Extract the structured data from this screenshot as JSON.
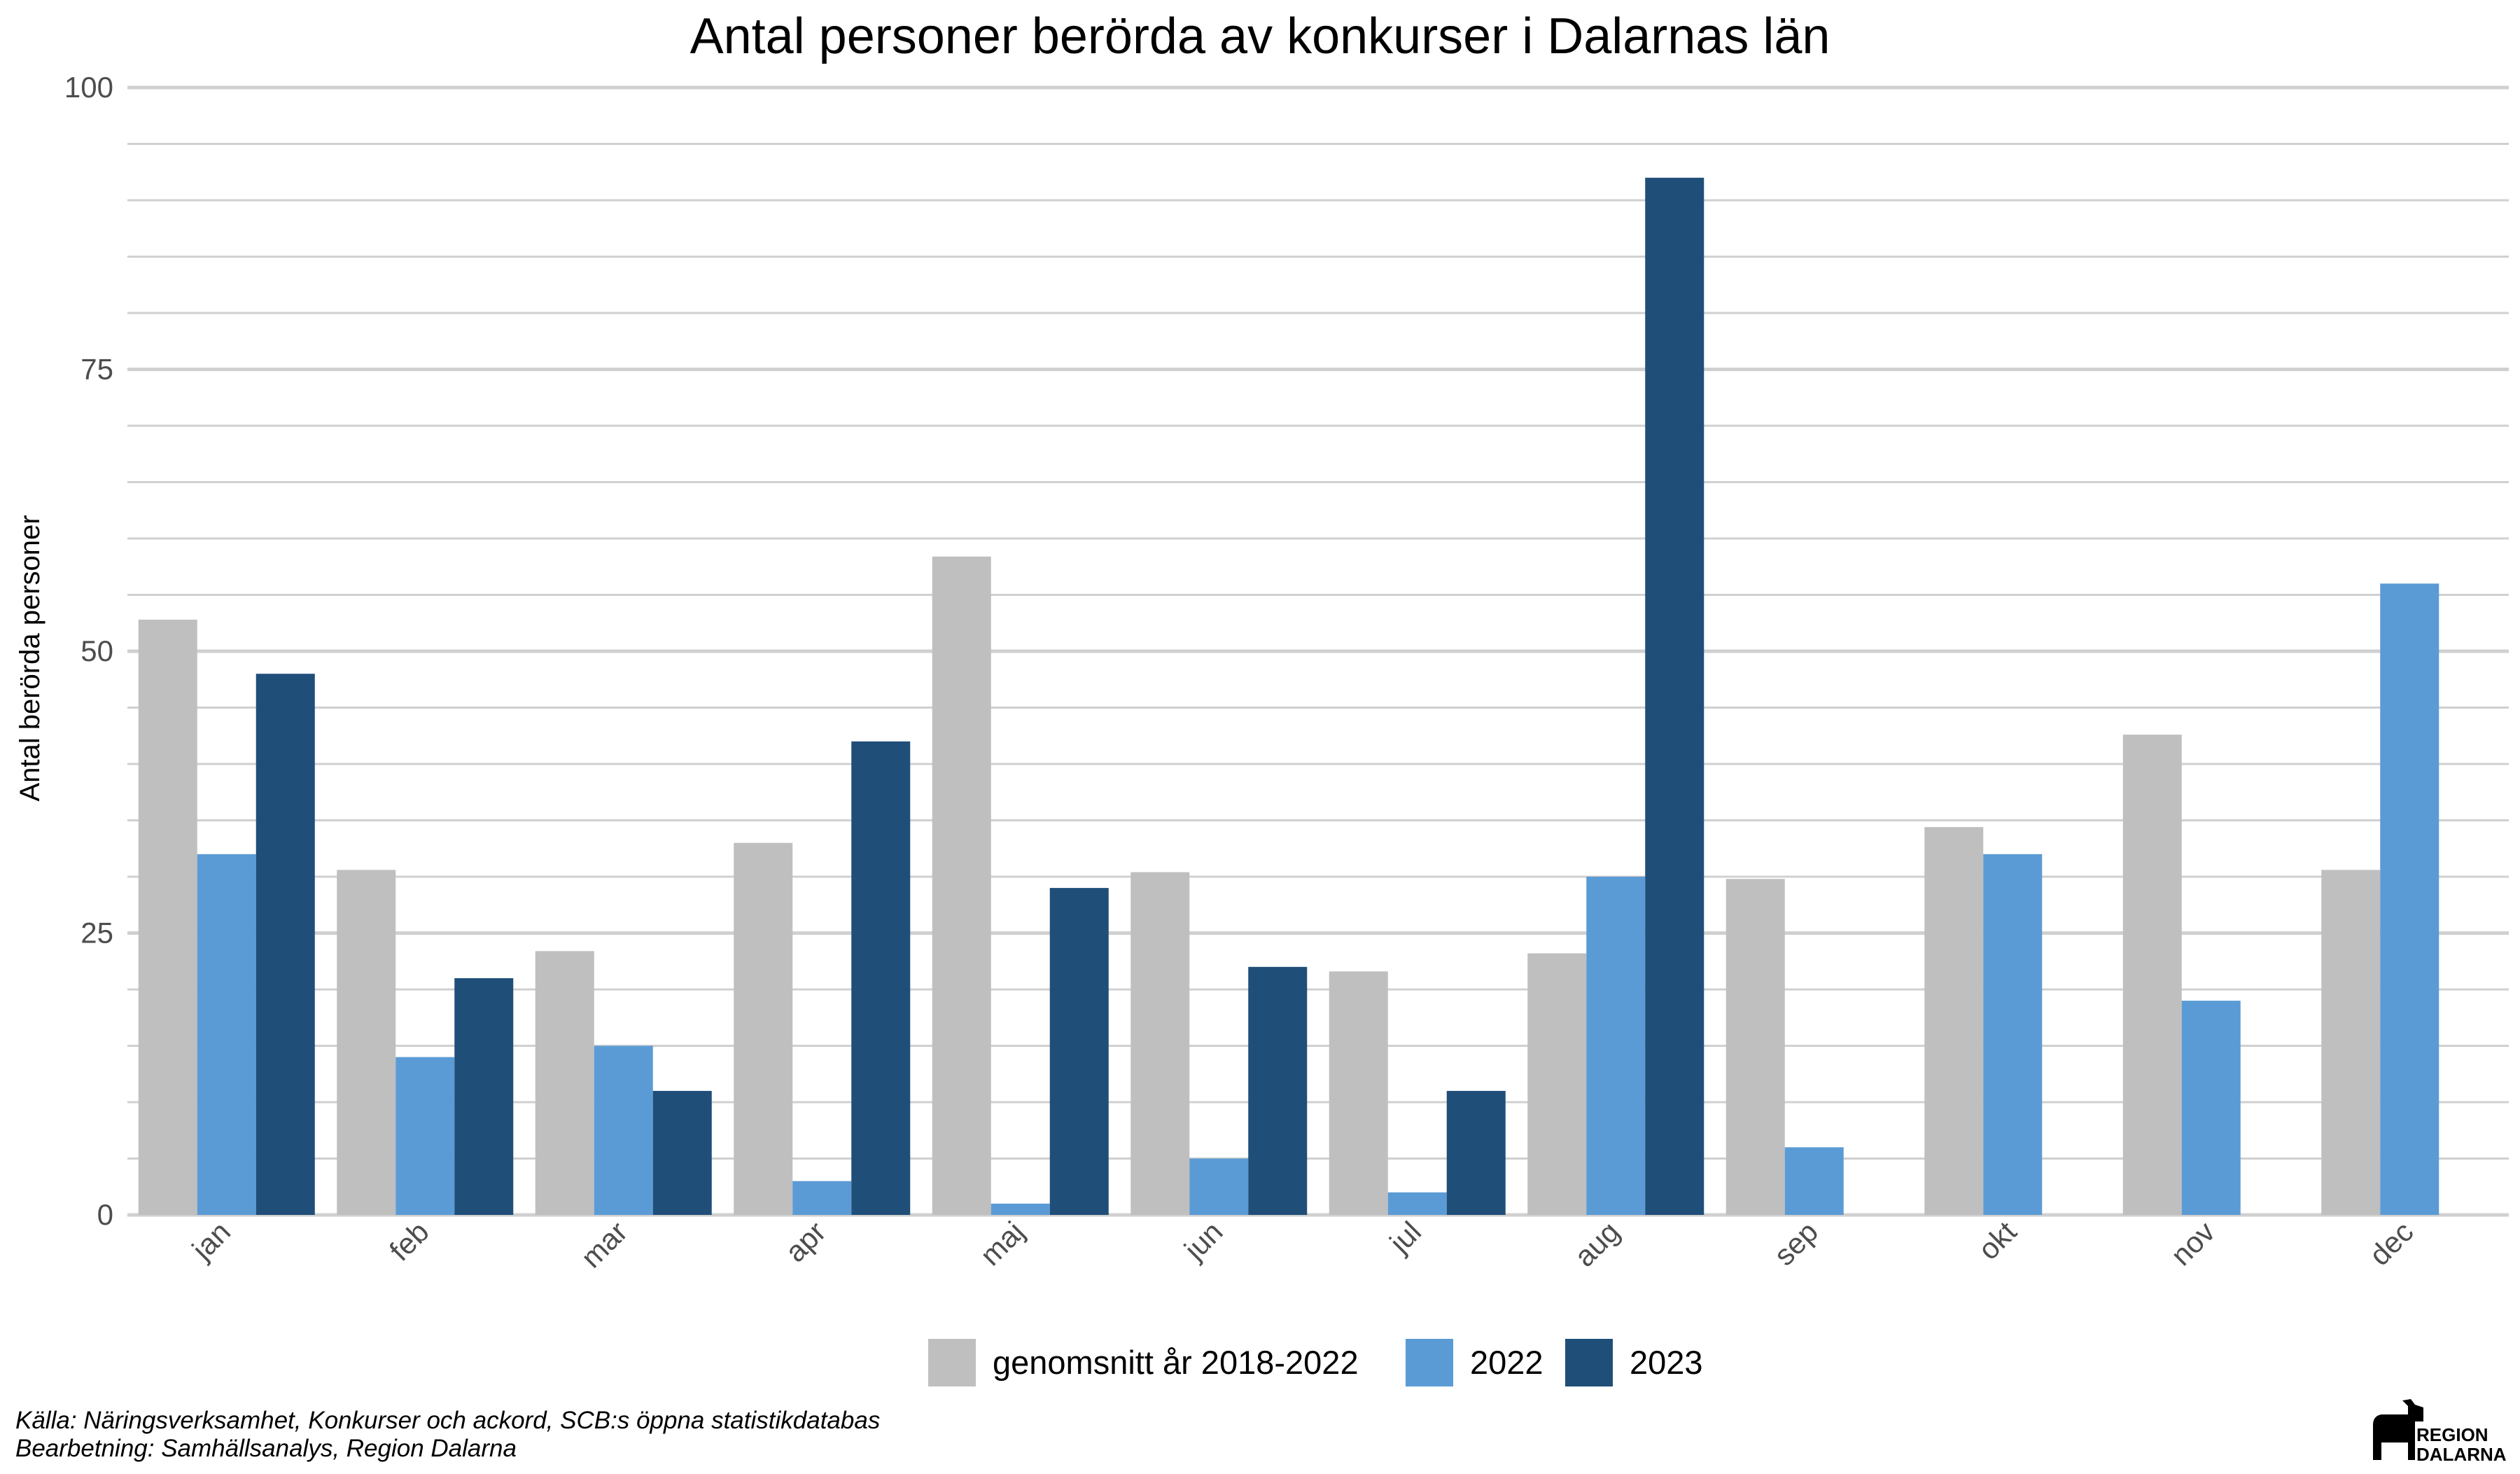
{
  "chart_data": {
    "type": "bar",
    "title": "Antal personer berörda av konkurser i Dalarnas län",
    "xlabel": "",
    "ylabel": "Antal berörda personer",
    "ylim": [
      0,
      100
    ],
    "yticks": [
      0,
      25,
      50,
      75,
      100
    ],
    "grid": true,
    "legend_position": "bottom",
    "categories": [
      "jan",
      "feb",
      "mar",
      "apr",
      "maj",
      "jun",
      "jul",
      "aug",
      "sep",
      "okt",
      "nov",
      "dec"
    ],
    "series": [
      {
        "name": "genomsnitt år 2018-2022",
        "color": "#bfbfbf",
        "values": [
          52.8,
          30.6,
          23.4,
          33.0,
          58.4,
          30.4,
          21.6,
          23.2,
          29.8,
          34.4,
          42.6,
          30.6
        ]
      },
      {
        "name": "2022",
        "color": "#5b9bd5",
        "values": [
          32,
          14,
          15,
          3,
          1,
          5,
          2,
          30,
          6,
          32,
          19,
          56
        ]
      },
      {
        "name": "2023",
        "color": "#1f4e79",
        "values": [
          48,
          21,
          11,
          42,
          29,
          22,
          11,
          92,
          null,
          null,
          null,
          null
        ]
      }
    ]
  },
  "source": {
    "line1": "Källa: Näringsverksamhet, Konkurser och ackord, SCB:s öppna statistikdatabas",
    "line2": "Bearbetning: Samhällsanalys, Region Dalarna"
  },
  "logo": {
    "line1": "REGION",
    "line2": "DALARNA"
  }
}
